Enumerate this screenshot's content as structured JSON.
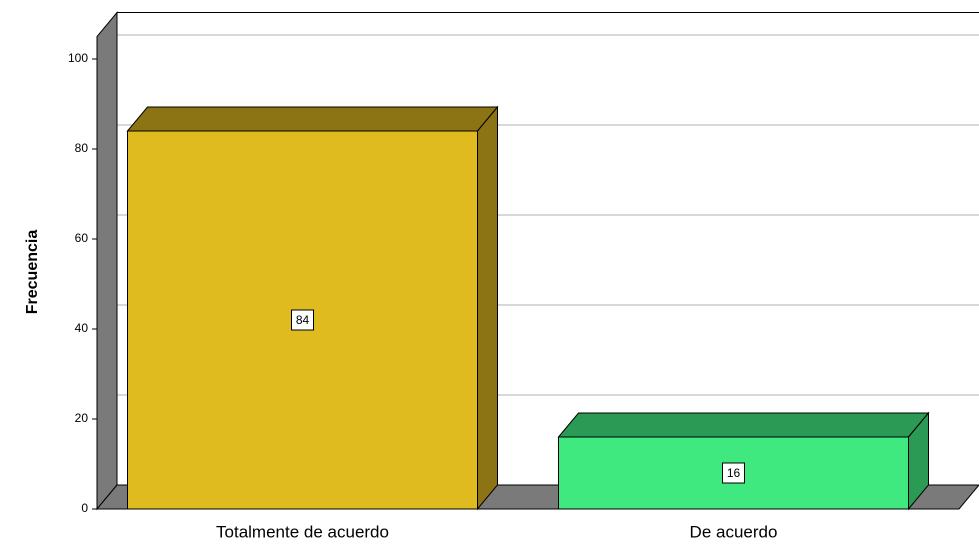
{
  "chart_data": {
    "type": "bar3d",
    "y_label": "Frecuencia",
    "categories": [
      "Totalmente de acuerdo",
      "De acuerdo"
    ],
    "values": [
      84,
      16
    ],
    "colors": [
      "#e0bb1f",
      "#40e880"
    ],
    "top_colors": [
      "#8c7414",
      "#2a9a55"
    ],
    "ylim": [
      0,
      105
    ],
    "yticks": [
      0,
      20,
      40,
      60,
      80,
      100
    ],
    "grid": true
  }
}
